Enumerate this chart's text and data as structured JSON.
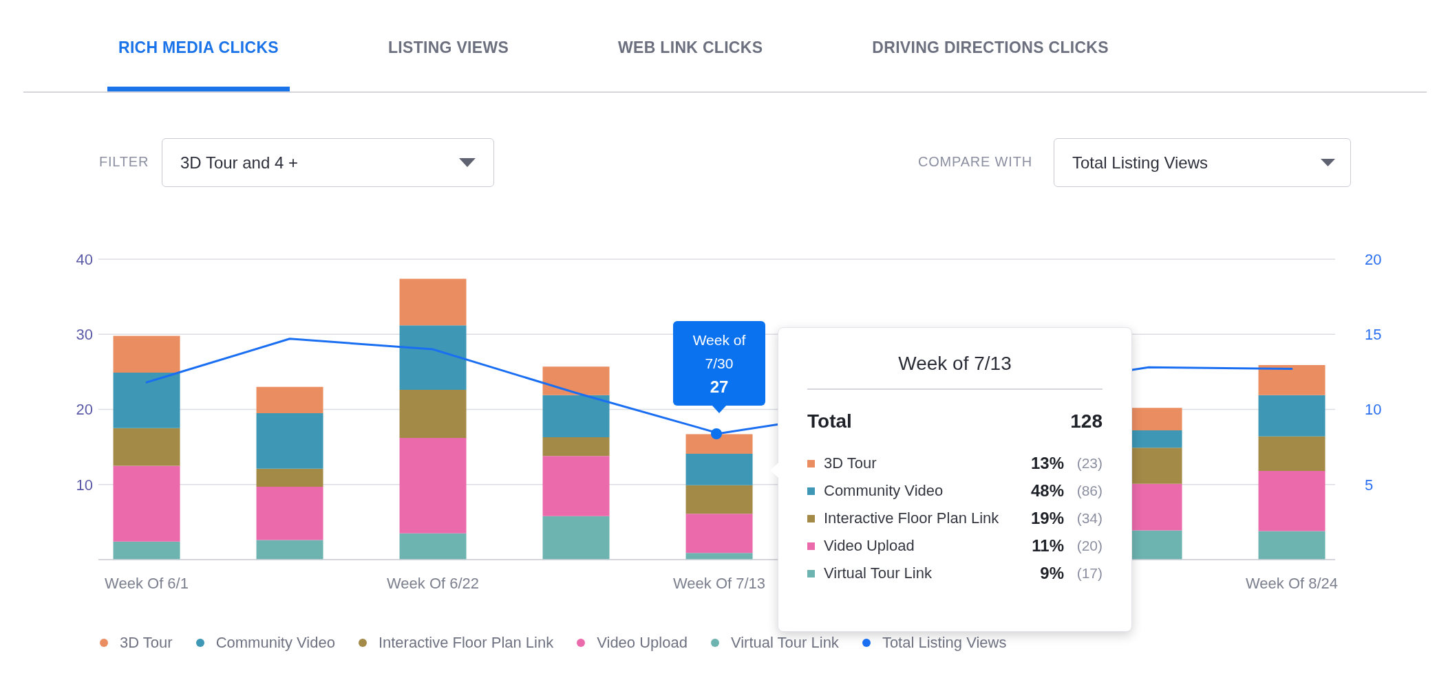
{
  "chart_data": {
    "type": "bar",
    "title": "RICH MEDIA CLICKS",
    "annotations": [
      "LISTING VIEWS",
      "WEB LINK CLICKS",
      "DRIVING DIRECTIONS CLICKS",
      "FILTER",
      "3D Tour and 4 +",
      "COMPARE WITH",
      "Total Listing Views",
      "Week of 7/30",
      "27",
      "Week of 7/13",
      "Total",
      "128",
      "3D Tour",
      "13%",
      "(23)",
      "Community Video",
      "48%",
      "(86)",
      "Interactive Floor Plan Link",
      "19%",
      "(34)",
      "Video Upload",
      "11%",
      "(20)",
      "Virtual Tour Link",
      "9%",
      "(17)"
    ],
    "categories": [
      "Week Of 6/1",
      null,
      "Week Of 6/22",
      null,
      "Week Of 7/13",
      null,
      null,
      null,
      "Week Of 8/24"
    ],
    "ylim": [
      0,
      40
    ],
    "yticks": [
      10,
      20,
      30,
      40
    ],
    "y2lim": [
      0,
      20
    ],
    "y2ticks": [
      5,
      10,
      15,
      20
    ],
    "stacked": true,
    "grid": "y",
    "legend": "bottom",
    "series": [
      {
        "name": "Virtual Tour Link",
        "color": "#6db3b0",
        "values": [
          2.4,
          2.6,
          3.5,
          5.8,
          0.9,
          null,
          null,
          3.9,
          3.8
        ]
      },
      {
        "name": "Video Upload",
        "color": "#ea6aab",
        "values": [
          10.1,
          7.1,
          12.7,
          8.0,
          5.2,
          null,
          null,
          6.2,
          8.0
        ]
      },
      {
        "name": "Interactive Floor Plan Link",
        "color": "#a38a47",
        "values": [
          5.0,
          2.4,
          6.4,
          2.5,
          3.8,
          null,
          null,
          4.8,
          4.6
        ]
      },
      {
        "name": "Community Video",
        "color": "#3d97b5",
        "values": [
          7.4,
          7.4,
          8.6,
          5.6,
          4.2,
          null,
          null,
          2.3,
          5.5
        ]
      },
      {
        "name": "3D Tour",
        "color": "#ea8d61",
        "values": [
          4.9,
          3.5,
          6.2,
          3.8,
          2.6,
          null,
          null,
          3.0,
          4.0
        ]
      },
      {
        "name": "Total Listing Views",
        "type": "line",
        "axis": "y2",
        "color": "#1a6ef2",
        "values": [
          11.8,
          14.7,
          14.0,
          11.1,
          8.4,
          null,
          null,
          12.8,
          12.7
        ]
      }
    ]
  }
}
